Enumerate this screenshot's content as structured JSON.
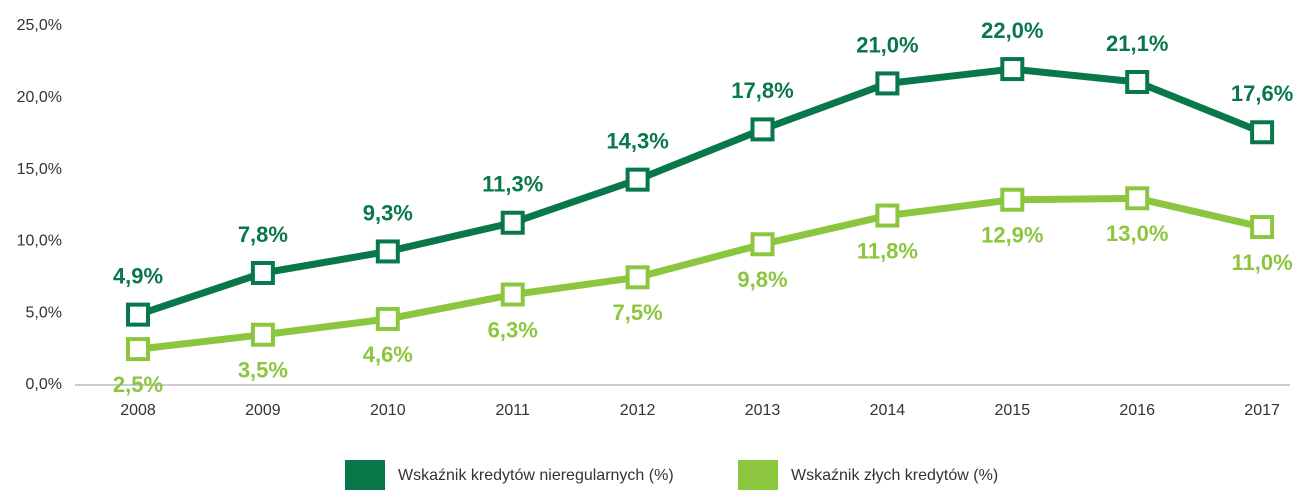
{
  "chart_data": {
    "type": "line",
    "categories": [
      "2008",
      "2009",
      "2010",
      "2011",
      "2012",
      "2013",
      "2014",
      "2015",
      "2016",
      "2017"
    ],
    "series": [
      {
        "name": "Wskaźnik kredytów nieregularnych (%)",
        "color": "#08784a",
        "values": [
          4.9,
          7.8,
          9.3,
          11.3,
          14.3,
          17.8,
          21.0,
          22.0,
          21.1,
          17.6
        ],
        "value_labels": [
          "4,9%",
          "7,8%",
          "9,3%",
          "11,3%",
          "14,3%",
          "17,8%",
          "21,0%",
          "22,0%",
          "21,1%",
          "17,6%"
        ]
      },
      {
        "name": "Wskaźnik złych kredytów (%)",
        "color": "#8cc63f",
        "values": [
          2.5,
          3.5,
          4.6,
          6.3,
          7.5,
          9.8,
          11.8,
          12.9,
          13.0,
          11.0
        ],
        "value_labels": [
          "2,5%",
          "3,5%",
          "4,6%",
          "6,3%",
          "7,5%",
          "9,8%",
          "11,8%",
          "12,9%",
          "13,0%",
          "11,0%"
        ]
      }
    ],
    "ylim": [
      0,
      25
    ],
    "yticks": [
      {
        "value": 0,
        "label": "0,0%"
      },
      {
        "value": 5,
        "label": "5,0%"
      },
      {
        "value": 10,
        "label": "10,0%"
      },
      {
        "value": 15,
        "label": "15,0%"
      },
      {
        "value": 20,
        "label": "20,0%"
      },
      {
        "value": 25,
        "label": "25,0%"
      }
    ],
    "legend": "bottom"
  }
}
